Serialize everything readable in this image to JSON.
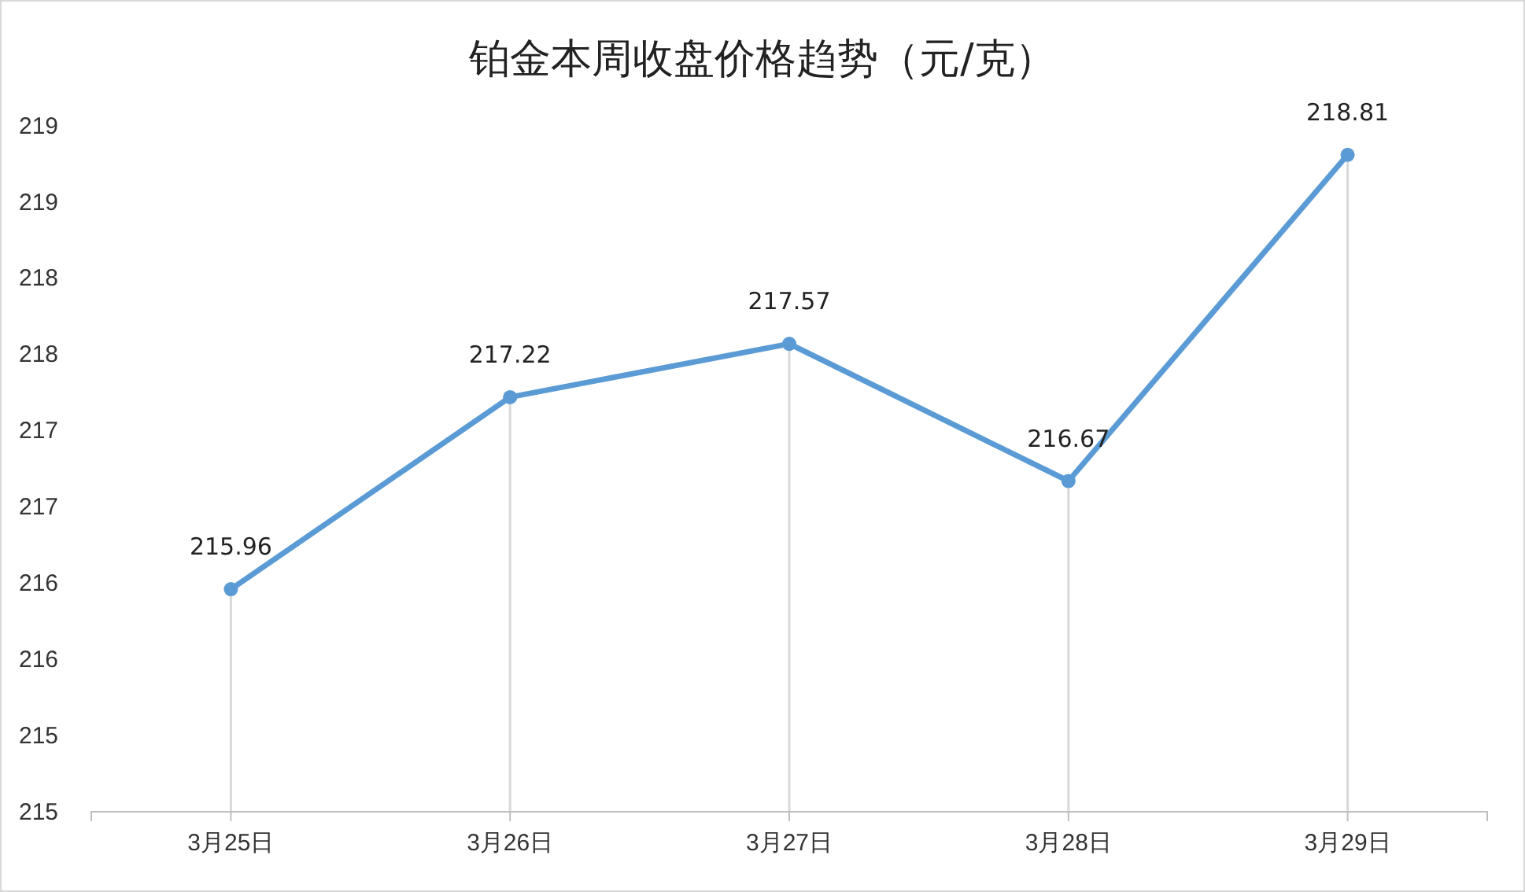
{
  "chart_data": {
    "type": "line",
    "title": "铂金本周收盘价格趋势（元/克）",
    "categories": [
      "3月25日",
      "3月26日",
      "3月27日",
      "3月28日",
      "3月29日"
    ],
    "series": [
      {
        "color": "#5b9bd5",
        "values": [
          215.96,
          217.22,
          217.57,
          216.67,
          218.81
        ]
      }
    ],
    "ylim": [
      214.5,
      219
    ],
    "yticks": [
      {
        "value": 214.5,
        "label": "215"
      },
      {
        "value": 215,
        "label": "215"
      },
      {
        "value": 215.5,
        "label": "216"
      },
      {
        "value": 216,
        "label": "216"
      },
      {
        "value": 216.5,
        "label": "217"
      },
      {
        "value": 217,
        "label": "217"
      },
      {
        "value": 217.5,
        "label": "218"
      },
      {
        "value": 218,
        "label": "218"
      },
      {
        "value": 218.5,
        "label": "219"
      },
      {
        "value": 219,
        "label": "219"
      }
    ],
    "data_labels": true,
    "marker": "circle",
    "line_style": "solid",
    "grid": "x"
  }
}
